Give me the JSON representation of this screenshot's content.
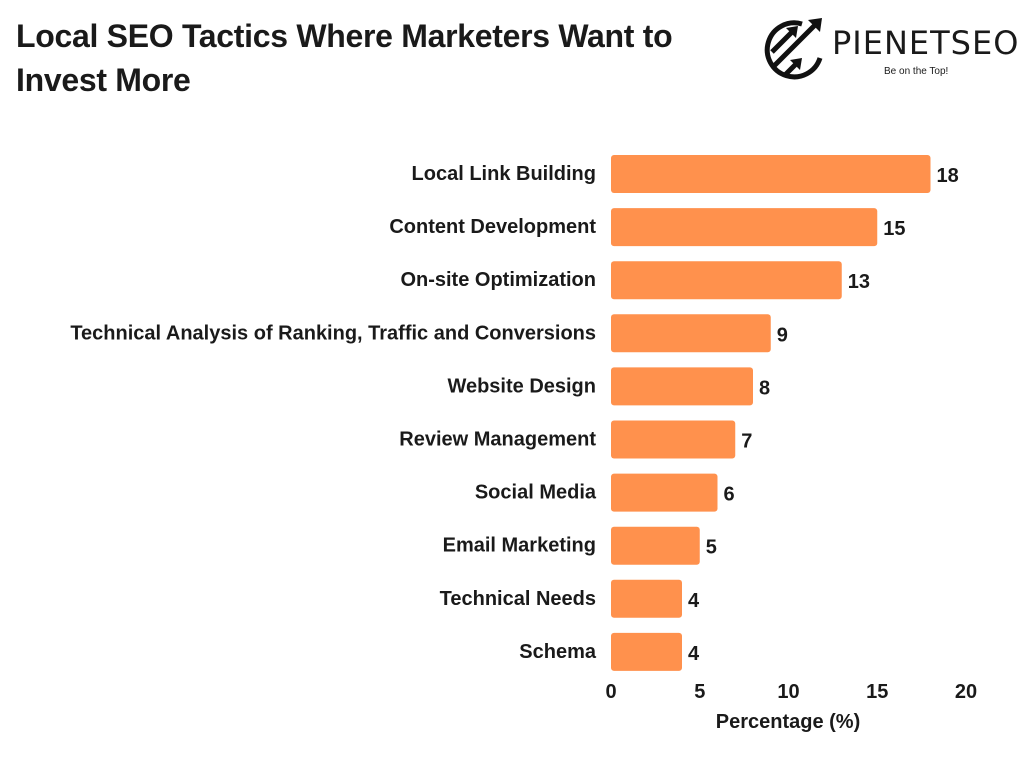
{
  "header": {
    "title": "Local SEO Tactics Where Marketers Want to Invest More"
  },
  "logo": {
    "name": "PIENETSEO",
    "tagline": "Be on the Top!"
  },
  "chart_data": {
    "type": "bar",
    "orientation": "horizontal",
    "title": "Local SEO Tactics Where Marketers Want to Invest More",
    "categories": [
      "Local Link Building",
      "Content Development",
      "On-site Optimization",
      "Technical Analysis of Ranking, Traffic and Conversions",
      "Website Design",
      "Review Management",
      "Social Media",
      "Email Marketing",
      "Technical Needs",
      "Schema"
    ],
    "values": [
      18,
      15,
      13,
      9,
      8,
      7,
      6,
      5,
      4,
      4
    ],
    "xlabel": "Percentage (%)",
    "ylabel": "",
    "xlim": [
      0,
      20
    ],
    "xticks": [
      0,
      5,
      10,
      15,
      20
    ],
    "grid": false,
    "bar_color": "#FF914D"
  }
}
